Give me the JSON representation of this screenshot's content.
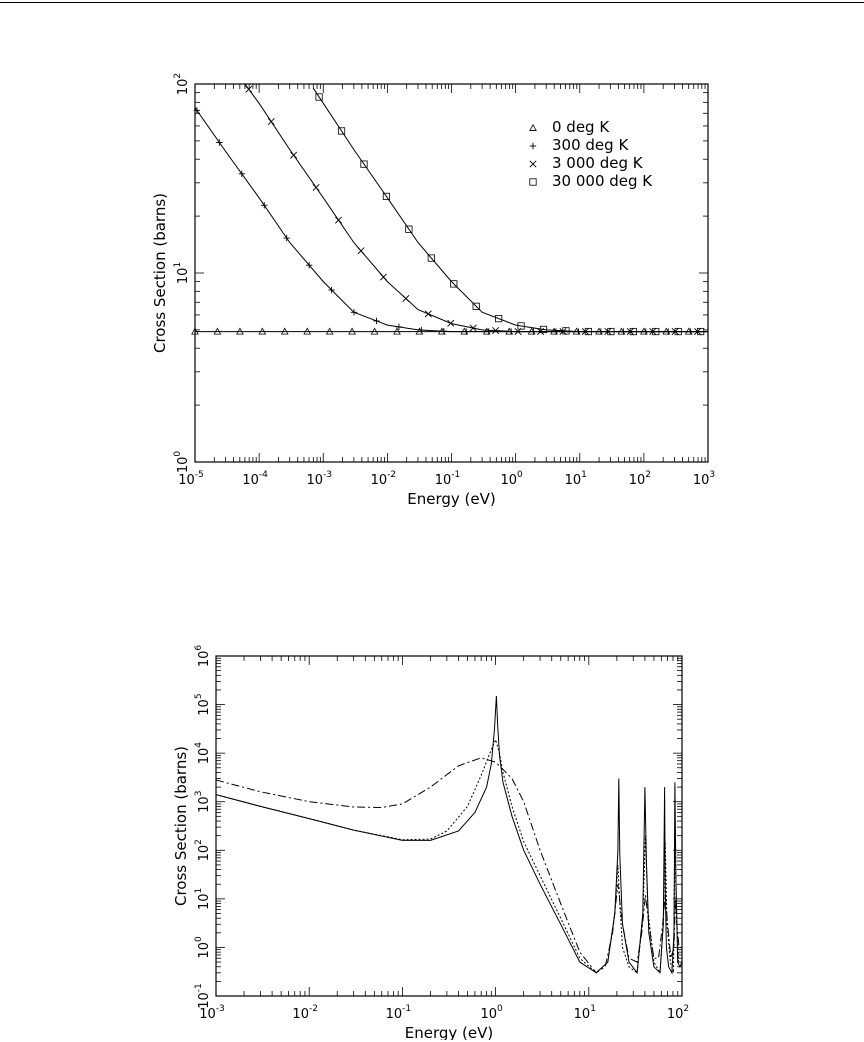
{
  "chart_data": [
    {
      "type": "line",
      "title": "",
      "xlabel": "Energy (eV)",
      "ylabel": "Cross Section (barns)",
      "xscale": "log",
      "yscale": "log",
      "xlim": [
        1e-05,
        1000
      ],
      "ylim": [
        1,
        100
      ],
      "grid": false,
      "legend_position": "top-right",
      "x_ticks": [
        {
          "v": 1e-05,
          "base": "10",
          "exp": "-5"
        },
        {
          "v": 0.0001,
          "base": "10",
          "exp": "-4"
        },
        {
          "v": 0.001,
          "base": "10",
          "exp": "-3"
        },
        {
          "v": 0.01,
          "base": "10",
          "exp": "-2"
        },
        {
          "v": 0.1,
          "base": "10",
          "exp": "-1"
        },
        {
          "v": 1,
          "base": "10",
          "exp": "0"
        },
        {
          "v": 10,
          "base": "10",
          "exp": "1"
        },
        {
          "v": 100,
          "base": "10",
          "exp": "2"
        },
        {
          "v": 1000,
          "base": "10",
          "exp": "3"
        }
      ],
      "y_ticks": [
        {
          "v": 1,
          "base": "10",
          "exp": "0"
        },
        {
          "v": 10,
          "base": "10",
          "exp": "1"
        },
        {
          "v": 100,
          "base": "10",
          "exp": "2"
        }
      ],
      "series": [
        {
          "name": "0 deg K",
          "marker": "triangle",
          "x": [
            1e-05,
            0.0001,
            0.001,
            0.01,
            0.1,
            1,
            10,
            100,
            1000
          ],
          "y": [
            4.9,
            4.9,
            4.9,
            4.9,
            4.9,
            4.9,
            4.9,
            4.9,
            4.9
          ]
        },
        {
          "name": "300 deg K",
          "marker": "plus",
          "x": [
            1e-05,
            3e-05,
            0.0001,
            0.0003,
            0.001,
            0.003,
            0.01,
            0.03,
            0.1,
            1,
            10,
            100,
            1000
          ],
          "y": [
            75,
            44,
            25,
            14.5,
            9.0,
            6.2,
            5.3,
            5.0,
            4.9,
            4.9,
            4.9,
            4.9,
            4.9
          ]
        },
        {
          "name": "3 000 deg K",
          "marker": "x",
          "x": [
            6e-05,
            0.0001,
            0.0003,
            0.001,
            0.003,
            0.01,
            0.03,
            0.1,
            0.3,
            1,
            10,
            100,
            1000
          ],
          "y": [
            100,
            79,
            45,
            25,
            14.5,
            9.0,
            6.4,
            5.4,
            5.0,
            4.9,
            4.9,
            4.9,
            4.9
          ]
        },
        {
          "name": "30 000 deg K",
          "marker": "square",
          "x": [
            0.0007,
            0.001,
            0.003,
            0.01,
            0.03,
            0.1,
            0.3,
            1,
            3,
            10,
            100,
            1000
          ],
          "y": [
            95,
            79,
            45,
            25,
            14.5,
            9.0,
            6.2,
            5.3,
            5.0,
            4.9,
            4.9,
            4.9
          ]
        }
      ]
    },
    {
      "type": "line",
      "title": "",
      "xlabel": "Energy (eV)",
      "ylabel": "Cross Section (barns)",
      "xscale": "log",
      "yscale": "log",
      "xlim": [
        0.001,
        100
      ],
      "ylim": [
        0.1,
        1000000
      ],
      "grid": false,
      "x_ticks": [
        {
          "v": 0.001,
          "base": "10",
          "exp": "-3"
        },
        {
          "v": 0.01,
          "base": "10",
          "exp": "-2"
        },
        {
          "v": 0.1,
          "base": "10",
          "exp": "-1"
        },
        {
          "v": 1,
          "base": "10",
          "exp": "0"
        },
        {
          "v": 10,
          "base": "10",
          "exp": "1"
        },
        {
          "v": 100,
          "base": "10",
          "exp": "2"
        }
      ],
      "y_ticks": [
        {
          "v": 0.1,
          "base": "10",
          "exp": "-1"
        },
        {
          "v": 1,
          "base": "10",
          "exp": "0"
        },
        {
          "v": 10,
          "base": "10",
          "exp": "1"
        },
        {
          "v": 100,
          "base": "10",
          "exp": "2"
        },
        {
          "v": 1000,
          "base": "10",
          "exp": "3"
        },
        {
          "v": 10000,
          "base": "10",
          "exp": "4"
        },
        {
          "v": 100000,
          "base": "10",
          "exp": "5"
        },
        {
          "v": 1000000,
          "base": "10",
          "exp": "6"
        }
      ],
      "series": [
        {
          "style": "solid",
          "x": [
            0.001,
            0.003,
            0.01,
            0.03,
            0.1,
            0.2,
            0.4,
            0.6,
            0.8,
            0.9,
            0.97,
            1.02,
            1.05,
            1.1,
            1.2,
            1.5,
            2,
            3,
            5,
            8,
            12,
            16,
            19,
            20.5,
            21,
            21.5,
            23,
            27,
            33,
            38,
            40,
            41.5,
            44,
            50,
            58,
            63,
            65,
            66,
            68,
            72,
            78,
            82,
            84,
            86,
            90,
            95,
            100
          ],
          "y": [
            1400,
            800,
            450,
            260,
            160,
            160,
            250,
            600,
            2000,
            6000,
            30000,
            150000,
            40000,
            9000,
            2500,
            500,
            100,
            20,
            3,
            0.5,
            0.3,
            0.5,
            5,
            100,
            3000,
            80,
            3,
            0.5,
            0.3,
            5,
            2000,
            60,
            2,
            0.4,
            0.3,
            3,
            2000,
            20,
            1,
            0.4,
            0.3,
            2,
            2500,
            30,
            0.5,
            0.4,
            0.5
          ]
        },
        {
          "style": "dotted",
          "x": [
            0.001,
            0.003,
            0.01,
            0.03,
            0.1,
            0.2,
            0.3,
            0.5,
            0.7,
            0.85,
            1.0,
            1.1,
            1.2,
            1.5,
            2,
            3,
            5,
            8,
            12,
            16,
            19,
            20.5,
            21.5,
            23,
            27,
            33,
            38,
            40.5,
            43,
            50,
            58,
            63,
            66,
            69,
            75,
            81,
            84,
            87,
            92,
            100
          ],
          "y": [
            1400,
            800,
            450,
            260,
            165,
            170,
            250,
            800,
            3500,
            9000,
            19000,
            10000,
            4000,
            800,
            150,
            30,
            4,
            0.6,
            0.3,
            0.5,
            5,
            50,
            8,
            1,
            0.4,
            0.3,
            4,
            200,
            6,
            0.5,
            0.3,
            3,
            150,
            3,
            0.5,
            0.3,
            200,
            5,
            0.5,
            0.5
          ]
        },
        {
          "style": "dash-dot",
          "x": [
            0.001,
            0.003,
            0.01,
            0.03,
            0.06,
            0.1,
            0.2,
            0.4,
            0.7,
            1.0,
            1.5,
            2,
            3,
            5,
            8,
            12,
            15,
            18,
            20.5,
            23,
            27,
            33,
            37,
            40.5,
            44,
            50,
            56,
            62,
            66,
            70,
            76,
            82,
            85,
            88,
            93,
            100
          ],
          "y": [
            2800,
            1600,
            1000,
            780,
            760,
            900,
            2000,
            5500,
            8000,
            6500,
            3000,
            1000,
            100,
            8,
            0.8,
            0.3,
            0.4,
            2,
            20,
            3,
            0.6,
            0.5,
            2,
            12,
            3,
            0.6,
            0.6,
            3,
            12,
            3,
            0.6,
            1,
            10,
            3,
            1,
            1
          ]
        }
      ]
    }
  ]
}
